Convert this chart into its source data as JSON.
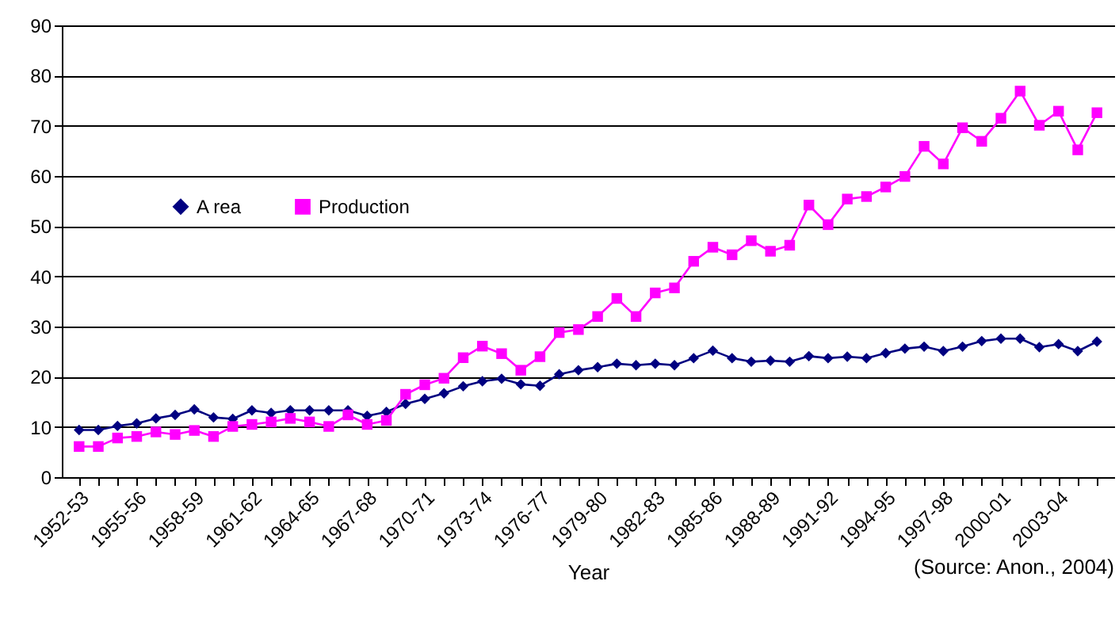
{
  "chart_data": {
    "type": "line",
    "xlabel": "Year",
    "annotations": [
      "(Source: Anon., 2004)"
    ],
    "categories": [
      "1952-53",
      null,
      null,
      "1955-56",
      null,
      null,
      "1958-59",
      null,
      null,
      "1961-62",
      null,
      null,
      "1964-65",
      null,
      null,
      "1967-68",
      null,
      null,
      "1970-71",
      null,
      null,
      "1973-74",
      null,
      null,
      "1976-77",
      null,
      null,
      "1979-80",
      null,
      null,
      "1982-83",
      null,
      null,
      "1985-86",
      null,
      null,
      "1988-89",
      null,
      null,
      "1991-92",
      null,
      null,
      "1994-95",
      null,
      null,
      "1997-98",
      null,
      null,
      "2000-01",
      null,
      null,
      "2003-04",
      null,
      null
    ],
    "series": [
      {
        "name": "A rea",
        "color": "#000080",
        "marker": "diamond",
        "values": [
          9.4,
          9.4,
          10.2,
          10.7,
          11.7,
          12.4,
          13.5,
          11.9,
          11.6,
          13.3,
          12.8,
          13.3,
          13.3,
          13.3,
          13.3,
          12.2,
          13.0,
          14.6,
          15.6,
          16.7,
          18.1,
          19.1,
          19.6,
          18.5,
          18.2,
          20.5,
          21.3,
          21.9,
          22.6,
          22.3,
          22.6,
          22.3,
          23.7,
          25.2,
          23.7,
          23.0,
          23.2,
          23.0,
          24.1,
          23.7,
          24.0,
          23.7,
          24.7,
          25.6,
          26.0,
          25.1,
          26.0,
          27.1,
          27.6,
          27.6,
          25.9,
          26.5,
          25.1,
          27.0
        ]
      },
      {
        "name": "Production",
        "color": "#ff00ff",
        "marker": "square",
        "values": [
          6.1,
          6.1,
          7.8,
          8.1,
          9.0,
          8.5,
          9.3,
          8.1,
          10.1,
          10.5,
          11.0,
          11.7,
          11.0,
          10.1,
          12.4,
          10.5,
          11.3,
          16.5,
          18.4,
          19.7,
          23.8,
          26.1,
          24.6,
          21.3,
          24.0,
          28.8,
          29.4,
          32.0,
          35.6,
          32.0,
          36.7,
          37.7,
          43.0,
          45.8,
          44.3,
          47.1,
          45.0,
          46.2,
          54.2,
          50.3,
          55.4,
          55.9,
          57.8,
          59.9,
          65.9,
          62.4,
          69.6,
          66.9,
          71.5,
          76.9,
          70.1,
          72.9,
          65.2,
          72.6
        ]
      }
    ],
    "ylim": [
      0,
      90
    ],
    "yticks": [
      0,
      10,
      20,
      30,
      40,
      50,
      60,
      70,
      80,
      90
    ],
    "grid": "y",
    "legend": "top left",
    "line_style": "solid"
  }
}
